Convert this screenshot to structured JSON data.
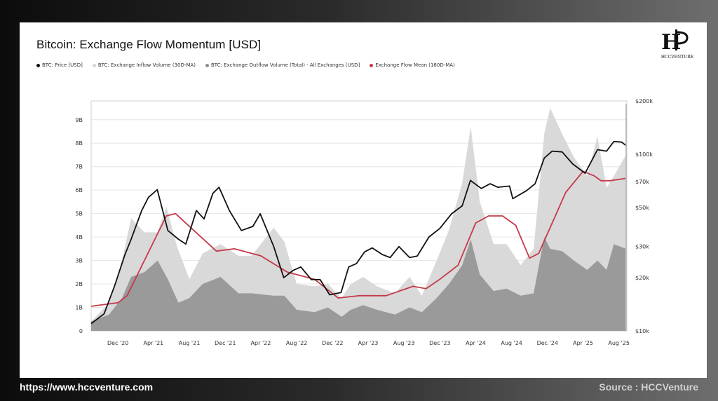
{
  "chart_data": {
    "type": "area",
    "title": "Bitcoin: Exchange Flow Momentum [USD]",
    "x_tick_labels": [
      "Dec '20",
      "Apr '21",
      "Aug '21",
      "Dec '21",
      "Apr '22",
      "Aug '22",
      "Dec '22",
      "Apr '23",
      "Aug '23",
      "Dec '23",
      "Apr '24",
      "Aug '24",
      "Dec '24",
      "Apr '25",
      "Aug '25"
    ],
    "left_axis": {
      "ticks": [
        "0",
        "1B",
        "2B",
        "3B",
        "4B",
        "5B",
        "6B",
        "7B",
        "8B",
        "9B"
      ],
      "ylim": [
        0,
        9800000000.0
      ]
    },
    "right_axis": {
      "scale": "log",
      "ticks": [
        "$10k",
        "$20k",
        "$30k",
        "$50k",
        "$70k",
        "$100k",
        "$200k"
      ],
      "ylim": [
        10000,
        200000
      ]
    },
    "grid": true,
    "legend_position": "top-left",
    "colors": {
      "price": "#111111",
      "inflow": "#d9d9d9",
      "outflow": "#9a9a9a",
      "mean": "#c43a4a"
    },
    "series": [
      {
        "name": "BTC: Price [USD]",
        "axis": "right",
        "style": "line",
        "x": [
          "2020-09-01",
          "2020-10-15",
          "2020-11-20",
          "2020-12-25",
          "2021-01-15",
          "2021-02-20",
          "2021-03-15",
          "2021-04-14",
          "2021-05-20",
          "2021-06-25",
          "2021-07-20",
          "2021-08-25",
          "2021-09-20",
          "2021-10-20",
          "2021-11-10",
          "2021-12-15",
          "2022-01-25",
          "2022-03-05",
          "2022-03-30",
          "2022-05-15",
          "2022-06-18",
          "2022-07-20",
          "2022-08-15",
          "2022-09-20",
          "2022-10-20",
          "2022-11-21",
          "2022-12-30",
          "2023-01-25",
          "2023-02-20",
          "2023-03-20",
          "2023-04-15",
          "2023-05-20",
          "2023-06-15",
          "2023-07-15",
          "2023-08-20",
          "2023-09-15",
          "2023-10-25",
          "2023-12-01",
          "2024-01-10",
          "2024-02-15",
          "2024-03-14",
          "2024-04-20",
          "2024-05-20",
          "2024-06-15",
          "2024-07-25",
          "2024-08-05",
          "2024-09-20",
          "2024-10-20",
          "2024-11-20",
          "2024-12-17",
          "2025-01-20",
          "2025-02-25",
          "2025-04-08",
          "2025-05-20",
          "2025-06-20",
          "2025-07-15",
          "2025-08-10",
          "2025-08-25"
        ],
        "y": [
          11000,
          12500,
          18000,
          27000,
          33000,
          48000,
          57000,
          63000,
          37000,
          33000,
          31000,
          48000,
          43000,
          60000,
          65000,
          48000,
          37000,
          39000,
          46000,
          30000,
          20000,
          22000,
          23000,
          19500,
          19500,
          16000,
          16500,
          23000,
          24000,
          28000,
          29500,
          27000,
          26000,
          30000,
          26000,
          26500,
          34000,
          38000,
          46000,
          51000,
          71000,
          64000,
          68000,
          65000,
          66000,
          56000,
          62000,
          68000,
          95000,
          104000,
          103000,
          88000,
          78000,
          106000,
          104000,
          118000,
          117000,
          112000
        ]
      },
      {
        "name": "BTC: Exchange Inflow Volume (30D-MA)",
        "axis": "left",
        "style": "area",
        "x": [
          "2020-09-01",
          "2020-11-01",
          "2020-12-15",
          "2021-01-15",
          "2021-03-01",
          "2021-04-15",
          "2021-05-15",
          "2021-06-20",
          "2021-08-01",
          "2021-09-15",
          "2021-11-15",
          "2022-01-15",
          "2022-03-01",
          "2022-05-15",
          "2022-06-20",
          "2022-08-01",
          "2022-10-01",
          "2022-11-15",
          "2023-01-01",
          "2023-02-01",
          "2023-03-15",
          "2023-05-01",
          "2023-07-01",
          "2023-08-20",
          "2023-10-01",
          "2023-11-20",
          "2024-01-01",
          "2024-02-15",
          "2024-03-15",
          "2024-04-15",
          "2024-06-01",
          "2024-07-15",
          "2024-09-01",
          "2024-10-15",
          "2024-11-20",
          "2024-12-10",
          "2025-01-20",
          "2025-03-01",
          "2025-04-15",
          "2025-05-20",
          "2025-06-20",
          "2025-07-15",
          "2025-08-25"
        ],
        "y": [
          400000000.0,
          1200000000.0,
          3000000000.0,
          4800000000.0,
          4200000000.0,
          4200000000.0,
          5300000000.0,
          3600000000.0,
          2200000000.0,
          3300000000.0,
          3700000000.0,
          3200000000.0,
          3200000000.0,
          4400000000.0,
          3800000000.0,
          2000000000.0,
          1900000000.0,
          2000000000.0,
          1400000000.0,
          2000000000.0,
          2300000000.0,
          1900000000.0,
          1600000000.0,
          2300000000.0,
          1500000000.0,
          3000000000.0,
          4300000000.0,
          6300000000.0,
          8700000000.0,
          5500000000.0,
          3700000000.0,
          3700000000.0,
          2800000000.0,
          3500000000.0,
          8400000000.0,
          9500000000.0,
          8400000000.0,
          7400000000.0,
          6600000000.0,
          8300000000.0,
          6100000000.0,
          6600000000.0,
          7500000000.0
        ]
      },
      {
        "name": "BTC: Exchange Outflow Volume (Total) - All Exchanges [USD]",
        "axis": "left",
        "style": "area",
        "x": [
          "2020-09-01",
          "2020-11-01",
          "2020-12-15",
          "2021-01-15",
          "2021-03-01",
          "2021-04-15",
          "2021-05-20",
          "2021-06-25",
          "2021-08-01",
          "2021-09-15",
          "2021-11-15",
          "2022-01-15",
          "2022-03-01",
          "2022-05-15",
          "2022-06-20",
          "2022-08-01",
          "2022-10-01",
          "2022-11-15",
          "2023-01-01",
          "2023-02-01",
          "2023-03-15",
          "2023-05-01",
          "2023-07-01",
          "2023-08-20",
          "2023-10-01",
          "2023-11-20",
          "2024-01-01",
          "2024-02-15",
          "2024-03-15",
          "2024-04-15",
          "2024-06-01",
          "2024-07-15",
          "2024-09-01",
          "2024-10-15",
          "2024-11-20",
          "2024-12-10",
          "2025-01-20",
          "2025-03-01",
          "2025-04-15",
          "2025-05-20",
          "2025-06-20",
          "2025-07-15",
          "2025-08-25"
        ],
        "y": [
          400000000.0,
          700000000.0,
          1400000000.0,
          2300000000.0,
          2500000000.0,
          3000000000.0,
          2200000000.0,
          1200000000.0,
          1400000000.0,
          2000000000.0,
          2300000000.0,
          1600000000.0,
          1600000000.0,
          1500000000.0,
          1500000000.0,
          900000000.0,
          800000000.0,
          1000000000.0,
          600000000.0,
          900000000.0,
          1100000000.0,
          900000000.0,
          700000000.0,
          1000000000.0,
          800000000.0,
          1400000000.0,
          2000000000.0,
          2800000000.0,
          3900000000.0,
          2400000000.0,
          1700000000.0,
          1800000000.0,
          1500000000.0,
          1600000000.0,
          4000000000.0,
          3500000000.0,
          3400000000.0,
          3000000000.0,
          2600000000.0,
          3000000000.0,
          2600000000.0,
          3700000000.0,
          3500000000.0
        ]
      },
      {
        "name": "Exchange Flow Mean (180D-MA)",
        "axis": "left",
        "style": "line",
        "x": [
          "2020-09-01",
          "2020-12-01",
          "2021-01-01",
          "2021-03-01",
          "2021-05-15",
          "2021-06-15",
          "2021-09-01",
          "2021-11-01",
          "2022-01-01",
          "2022-04-01",
          "2022-07-01",
          "2022-10-01",
          "2022-12-20",
          "2023-03-01",
          "2023-06-01",
          "2023-09-01",
          "2023-10-15",
          "2023-12-01",
          "2024-02-01",
          "2024-04-01",
          "2024-05-15",
          "2024-07-01",
          "2024-08-15",
          "2024-10-01",
          "2024-11-01",
          "2024-12-10",
          "2025-02-01",
          "2025-04-01",
          "2025-05-10",
          "2025-06-01",
          "2025-07-01",
          "2025-08-25"
        ],
        "y": [
          1050000000.0,
          1200000000.0,
          1500000000.0,
          3000000000.0,
          4900000000.0,
          5000000000.0,
          4100000000.0,
          3400000000.0,
          3500000000.0,
          3200000000.0,
          2500000000.0,
          2200000000.0,
          1400000000.0,
          1500000000.0,
          1500000000.0,
          1900000000.0,
          1800000000.0,
          2200000000.0,
          2800000000.0,
          4600000000.0,
          4900000000.0,
          4900000000.0,
          4500000000.0,
          3100000000.0,
          3300000000.0,
          4400000000.0,
          5900000000.0,
          6800000000.0,
          6600000000.0,
          6400000000.0,
          6400000000.0,
          6500000000.0
        ]
      }
    ]
  },
  "logo": {
    "text": "HCCVENTURE"
  },
  "footer": {
    "url": "https://www.hccventure.com",
    "source": "Source : HCCVenture"
  }
}
